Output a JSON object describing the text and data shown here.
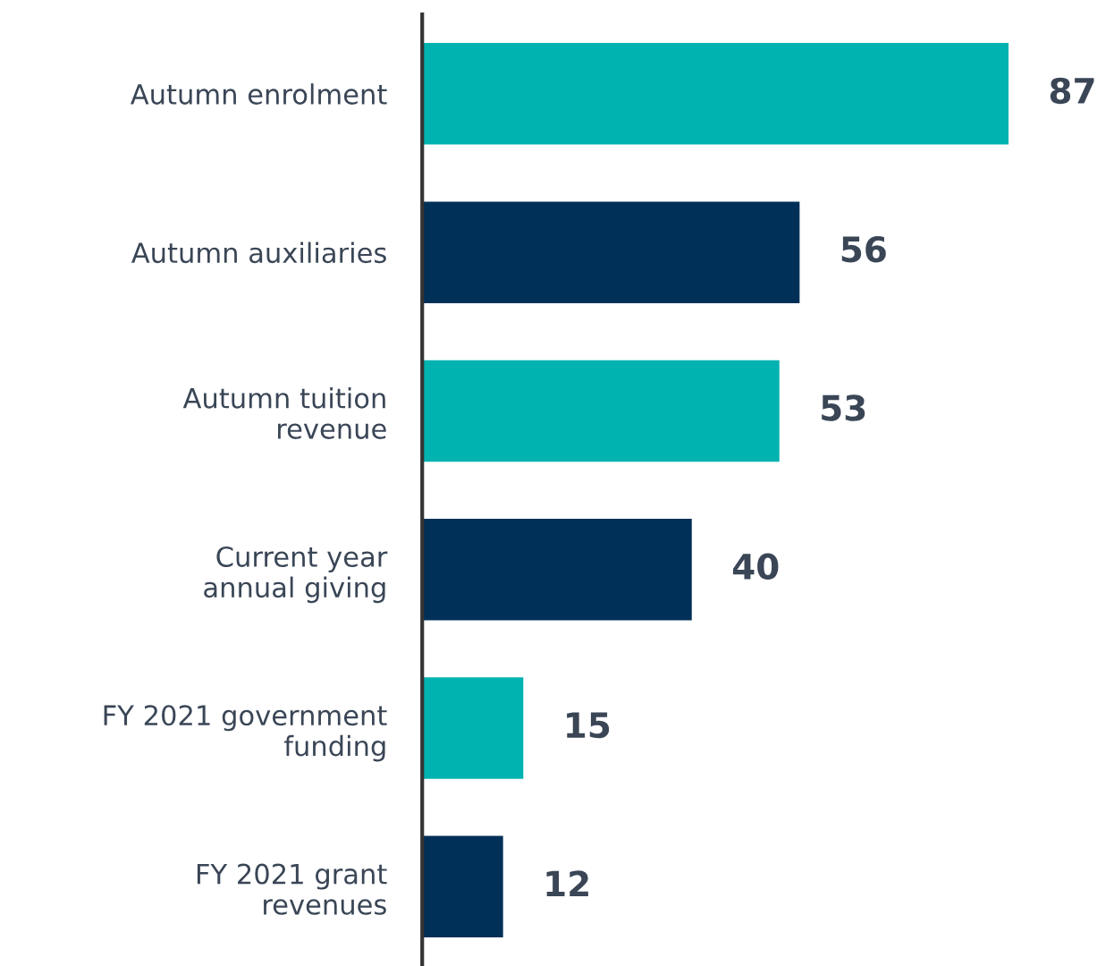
{
  "chart_data": {
    "type": "bar",
    "orientation": "horizontal",
    "categories": [
      "Autumn enrolment",
      "Autumn auxiliaries",
      "Autumn tuition\nrevenue",
      "Current year\nannual giving",
      "FY 2021 government\nfunding",
      "FY 2021 grant\nrevenues"
    ],
    "values": [
      87,
      56,
      53,
      40,
      15,
      12
    ],
    "colors": [
      "#00b2b0",
      "#003058",
      "#00b2b0",
      "#003058",
      "#00b2b0",
      "#003058"
    ],
    "data_labels": true,
    "grid": false,
    "tick_labels": "y"
  }
}
